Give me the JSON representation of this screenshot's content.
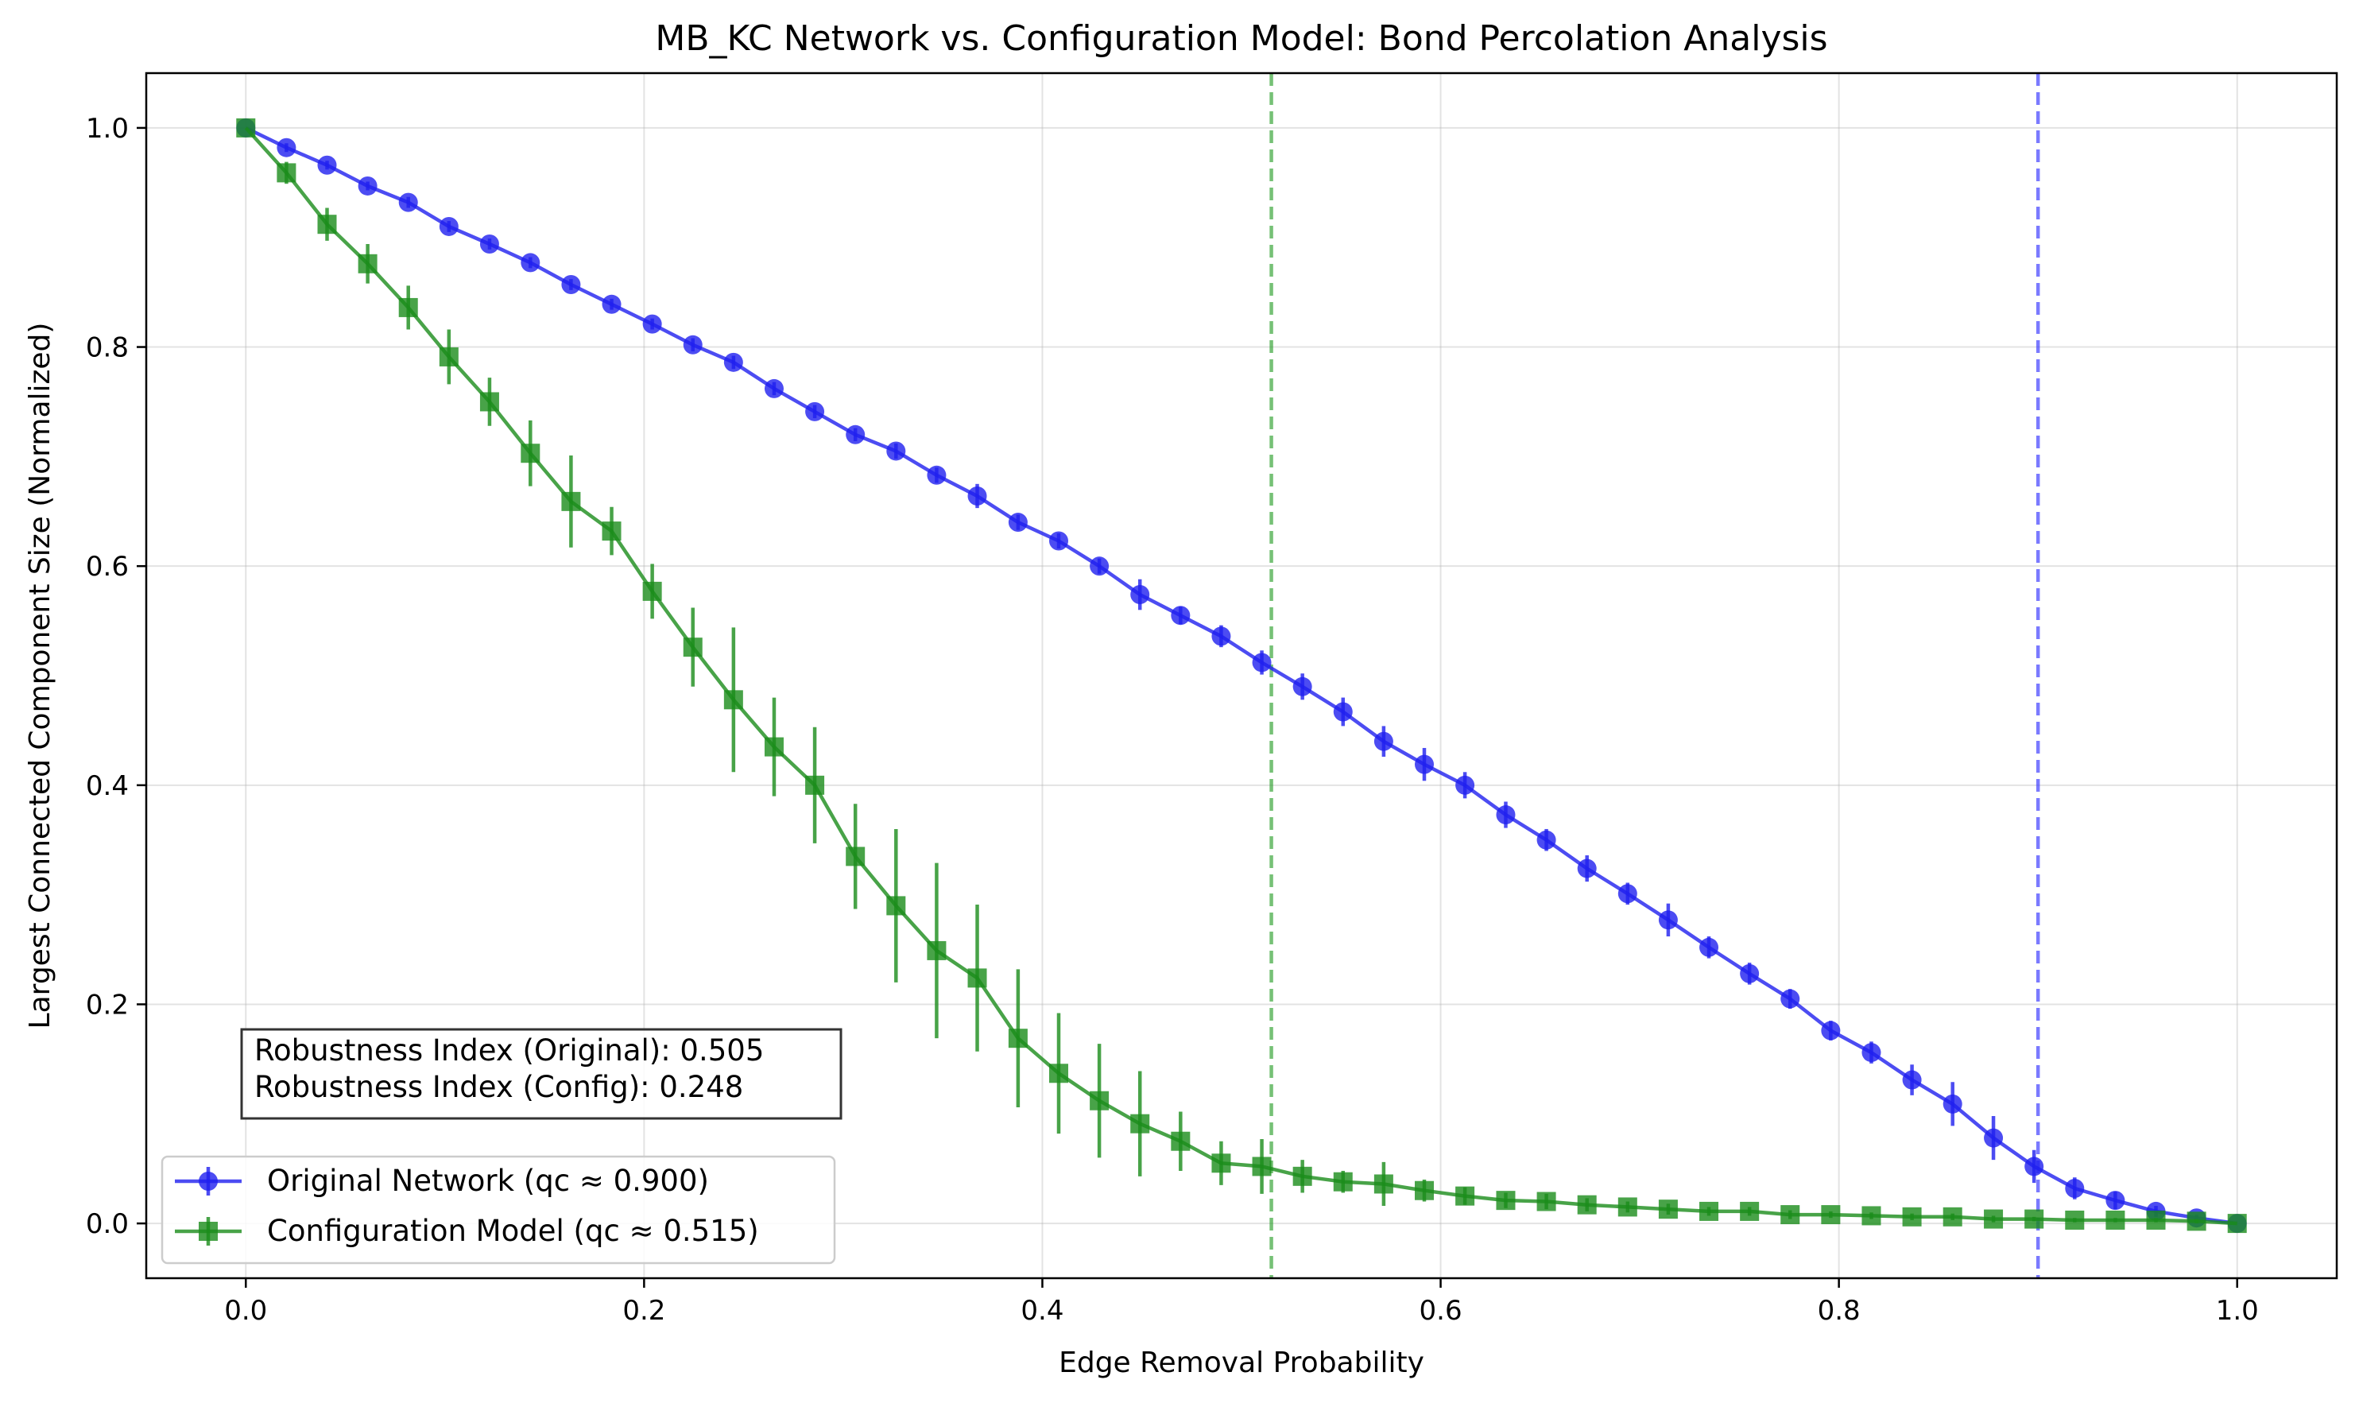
{
  "chart_data": {
    "type": "line",
    "title": "MB_KC Network vs. Configuration Model: Bond Percolation Analysis",
    "xlabel": "Edge Removal Probability",
    "ylabel": "Largest Connected Component Size (Normalized)",
    "xlim": [
      -0.05,
      1.05
    ],
    "ylim": [
      -0.05,
      1.05
    ],
    "xticks": [
      0.0,
      0.2,
      0.4,
      0.6,
      0.8,
      1.0
    ],
    "yticks": [
      0.0,
      0.2,
      0.4,
      0.6,
      0.8,
      1.0
    ],
    "xtick_labels": [
      "0.0",
      "0.2",
      "0.4",
      "0.6",
      "0.8",
      "1.0"
    ],
    "ytick_labels": [
      "0.0",
      "0.2",
      "0.4",
      "0.6",
      "0.8",
      "1.0"
    ],
    "grid": true,
    "legend_position": "lower-left",
    "annotation": {
      "lines": [
        "Robustness Index (Original): 0.505",
        "Robustness Index (Config): 0.248"
      ],
      "position": "lower-left"
    },
    "vlines": [
      {
        "x": 0.515,
        "color": "#2ca02c",
        "style": "dashed"
      },
      {
        "x": 0.9,
        "color": "#3333ff",
        "style": "dashed"
      }
    ],
    "x": [
      0.0,
      0.0204,
      0.0408,
      0.0612,
      0.0816,
      0.102,
      0.1224,
      0.1429,
      0.1633,
      0.1837,
      0.2041,
      0.2245,
      0.2449,
      0.2653,
      0.2857,
      0.3061,
      0.3265,
      0.3469,
      0.3673,
      0.3878,
      0.4082,
      0.4286,
      0.449,
      0.4694,
      0.4898,
      0.5102,
      0.5306,
      0.551,
      0.5714,
      0.5918,
      0.6122,
      0.6327,
      0.6531,
      0.6735,
      0.6939,
      0.7143,
      0.7347,
      0.7551,
      0.7755,
      0.7959,
      0.8163,
      0.8367,
      0.8571,
      0.8776,
      0.898,
      0.9184,
      0.9388,
      0.9592,
      0.9796,
      1.0
    ],
    "series": [
      {
        "name": "Original Network (qc ≈ 0.900)",
        "color": "#1f1fef",
        "marker": "circle",
        "values": [
          1.0,
          0.982,
          0.966,
          0.947,
          0.932,
          0.91,
          0.894,
          0.877,
          0.857,
          0.839,
          0.821,
          0.802,
          0.786,
          0.762,
          0.741,
          0.72,
          0.705,
          0.683,
          0.664,
          0.64,
          0.623,
          0.6,
          0.574,
          0.555,
          0.536,
          0.512,
          0.49,
          0.467,
          0.44,
          0.419,
          0.4,
          0.373,
          0.35,
          0.324,
          0.301,
          0.277,
          0.252,
          0.228,
          0.205,
          0.176,
          0.156,
          0.131,
          0.109,
          0.078,
          0.052,
          0.032,
          0.021,
          0.011,
          0.005,
          0.0
        ],
        "errors": [
          0.0,
          0.004,
          0.004,
          0.004,
          0.005,
          0.005,
          0.005,
          0.005,
          0.005,
          0.005,
          0.005,
          0.006,
          0.006,
          0.006,
          0.006,
          0.006,
          0.007,
          0.007,
          0.011,
          0.007,
          0.007,
          0.007,
          0.014,
          0.008,
          0.01,
          0.011,
          0.012,
          0.013,
          0.014,
          0.015,
          0.012,
          0.012,
          0.01,
          0.012,
          0.01,
          0.015,
          0.01,
          0.01,
          0.009,
          0.009,
          0.01,
          0.014,
          0.02,
          0.02,
          0.015,
          0.01,
          0.008,
          0.005,
          0.003,
          0.0
        ]
      },
      {
        "name": "Configuration Model (qc ≈ 0.515)",
        "color": "#1a8c1a",
        "marker": "square",
        "values": [
          1.0,
          0.959,
          0.912,
          0.876,
          0.836,
          0.791,
          0.75,
          0.703,
          0.659,
          0.632,
          0.577,
          0.526,
          0.478,
          0.435,
          0.4,
          0.335,
          0.29,
          0.249,
          0.224,
          0.169,
          0.137,
          0.112,
          0.091,
          0.075,
          0.055,
          0.052,
          0.043,
          0.038,
          0.036,
          0.03,
          0.025,
          0.021,
          0.02,
          0.017,
          0.015,
          0.013,
          0.011,
          0.011,
          0.008,
          0.008,
          0.007,
          0.006,
          0.006,
          0.004,
          0.004,
          0.003,
          0.003,
          0.003,
          0.002,
          0.0
        ],
        "errors": [
          0.0,
          0.01,
          0.015,
          0.018,
          0.02,
          0.025,
          0.022,
          0.03,
          0.042,
          0.022,
          0.025,
          0.036,
          0.066,
          0.045,
          0.053,
          0.048,
          0.07,
          0.08,
          0.067,
          0.063,
          0.055,
          0.052,
          0.048,
          0.027,
          0.02,
          0.025,
          0.015,
          0.01,
          0.02,
          0.01,
          0.008,
          0.007,
          0.007,
          0.006,
          0.005,
          0.005,
          0.004,
          0.004,
          0.004,
          0.003,
          0.003,
          0.003,
          0.003,
          0.003,
          0.002,
          0.002,
          0.002,
          0.002,
          0.002,
          0.0
        ]
      }
    ]
  }
}
